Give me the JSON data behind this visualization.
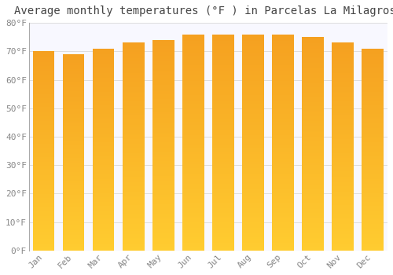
{
  "title": "Average monthly temperatures (°F ) in Parcelas La Milagrosa",
  "months": [
    "Jan",
    "Feb",
    "Mar",
    "Apr",
    "May",
    "Jun",
    "Jul",
    "Aug",
    "Sep",
    "Oct",
    "Nov",
    "Dec"
  ],
  "values": [
    70,
    69,
    71,
    73,
    74,
    76,
    76,
    76,
    76,
    75,
    73,
    71
  ],
  "bar_color_top": "#F5A020",
  "bar_color_bottom": "#FFCC30",
  "ylim": [
    0,
    80
  ],
  "yticks": [
    0,
    10,
    20,
    30,
    40,
    50,
    60,
    70,
    80
  ],
  "background_color": "#FFFFFF",
  "plot_bg_color": "#F8F8FF",
  "grid_color": "#DDDDDD",
  "title_fontsize": 10,
  "tick_fontsize": 8,
  "bar_width": 0.72
}
